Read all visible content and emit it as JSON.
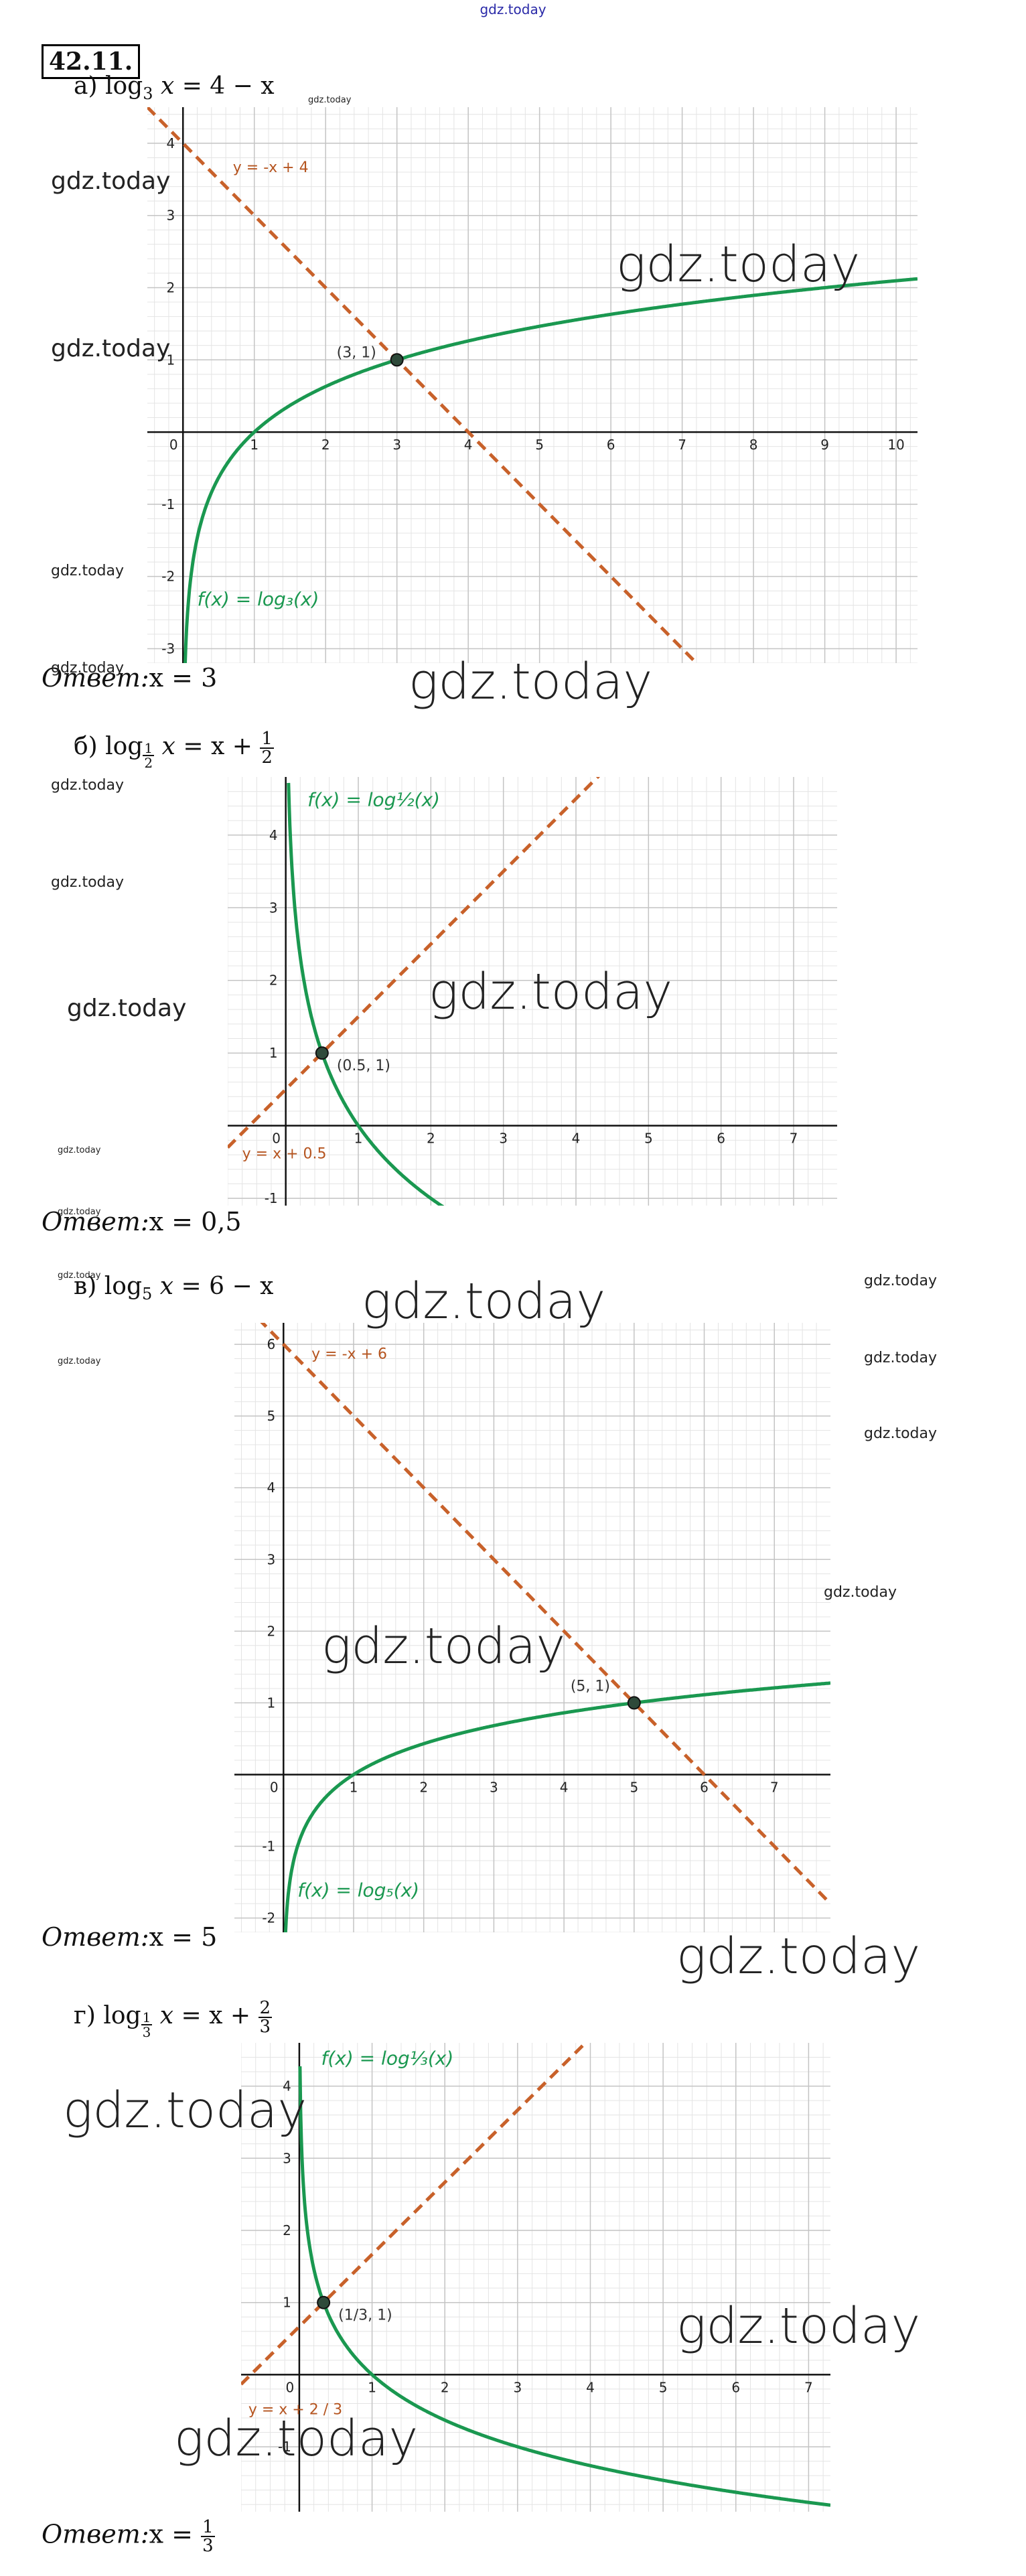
{
  "site_label": "gdz.today",
  "problem_number": "42.11.",
  "watermark": "gdz.today",
  "parts": [
    {
      "letter": "а)",
      "base": "3",
      "rhs": "= 4 − x",
      "answer_label": "Ответ:",
      "answer_value": "x = 3",
      "chart_data": {
        "type": "line",
        "xlim": [
          -0.5,
          10.3
        ],
        "ylim": [
          -3.2,
          4.5
        ],
        "x_ticks": [
          0,
          1,
          2,
          3,
          4,
          5,
          6,
          7,
          8,
          9,
          10
        ],
        "y_ticks": [
          -3,
          -2,
          -1,
          1,
          2,
          3,
          4
        ],
        "grid": true,
        "series": [
          {
            "name": "f(x) = log₃(x)",
            "kind": "log",
            "base": 3,
            "color": "#1a9850",
            "dashed": false
          },
          {
            "name": "y = -x + 4",
            "kind": "linear",
            "slope": -1,
            "intercept": 4,
            "color": "#c8612a",
            "dashed": true
          }
        ],
        "intersection": {
          "x": 3,
          "y": 1,
          "label": "(3, 1)"
        },
        "curve_label": "f(x) = log₃(x)",
        "line_label": "y = -x + 4"
      }
    },
    {
      "letter": "б)",
      "base_num": "1",
      "base_den": "2",
      "rhs_left": "= x +",
      "rhs_num": "1",
      "rhs_den": "2",
      "answer_label": "Ответ:",
      "answer_value": "x = 0,5",
      "chart_data": {
        "type": "line",
        "xlim": [
          -0.8,
          7.6
        ],
        "ylim": [
          -1.1,
          4.8
        ],
        "x_ticks": [
          0,
          1,
          2,
          3,
          4,
          5,
          6,
          7
        ],
        "y_ticks": [
          -1,
          1,
          2,
          3,
          4
        ],
        "grid": true,
        "series": [
          {
            "name": "f(x) = log½(x)",
            "kind": "log",
            "base": 0.5,
            "color": "#1a9850",
            "dashed": false
          },
          {
            "name": "y = x + 0.5",
            "kind": "linear",
            "slope": 1,
            "intercept": 0.5,
            "color": "#c8612a",
            "dashed": true
          }
        ],
        "intersection": {
          "x": 0.5,
          "y": 1,
          "label": "(0.5, 1)"
        },
        "curve_label": "f(x) = log½(x)",
        "line_label": "y = x + 0.5"
      }
    },
    {
      "letter": "в)",
      "base": "5",
      "rhs": "= 6 − x",
      "answer_label": "Ответ:",
      "answer_value": "x = 5",
      "chart_data": {
        "type": "line",
        "xlim": [
          -0.7,
          7.8
        ],
        "ylim": [
          -2.2,
          6.3
        ],
        "x_ticks": [
          0,
          1,
          2,
          3,
          4,
          5,
          6,
          7
        ],
        "y_ticks": [
          -2,
          -1,
          1,
          2,
          3,
          4,
          5,
          6
        ],
        "grid": true,
        "series": [
          {
            "name": "f(x) = log₅(x)",
            "kind": "log",
            "base": 5,
            "color": "#1a9850",
            "dashed": false
          },
          {
            "name": "y = -x + 6",
            "kind": "linear",
            "slope": -1,
            "intercept": 6,
            "color": "#c8612a",
            "dashed": true
          }
        ],
        "intersection": {
          "x": 5,
          "y": 1,
          "label": "(5, 1)"
        },
        "curve_label": "f(x) = log₅(x)",
        "line_label": "y = -x + 6"
      }
    },
    {
      "letter": "г)",
      "base_num": "1",
      "base_den": "3",
      "rhs_left": "= x +",
      "rhs_num": "2",
      "rhs_den": "3",
      "answer_label": "Ответ:",
      "answer_num": "1",
      "answer_den": "3",
      "answer_prefix": "x =",
      "chart_data": {
        "type": "line",
        "xlim": [
          -0.8,
          7.3
        ],
        "ylim": [
          -1.9,
          4.6
        ],
        "x_ticks": [
          0,
          1,
          2,
          3,
          4,
          5,
          6,
          7
        ],
        "y_ticks": [
          -1,
          1,
          2,
          3,
          4
        ],
        "grid": true,
        "series": [
          {
            "name": "f(x) = log⅓(x)",
            "kind": "log",
            "base": 0.3333,
            "color": "#1a9850",
            "dashed": false
          },
          {
            "name": "y = x + 2 / 3",
            "kind": "linear",
            "slope": 1,
            "intercept": 0.6667,
            "color": "#c8612a",
            "dashed": true
          }
        ],
        "intersection": {
          "x": 0.3333,
          "y": 1,
          "label": "(1/3, 1)"
        },
        "curve_label": "f(x) = log⅓(x)",
        "line_label": "y = x + 2 / 3"
      }
    }
  ]
}
